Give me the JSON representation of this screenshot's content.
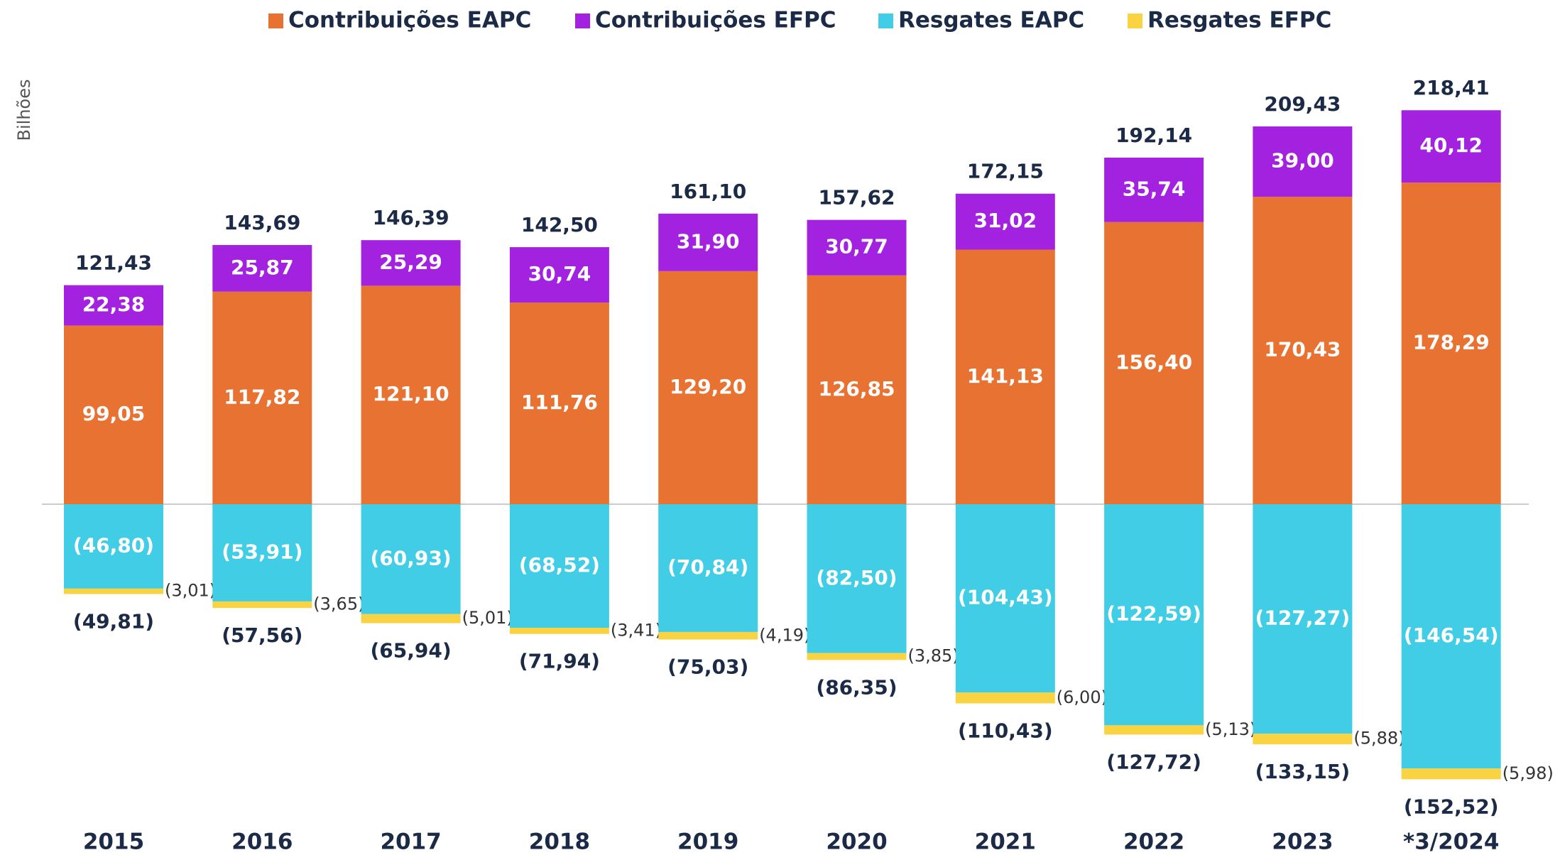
{
  "chart_data": {
    "type": "bar",
    "stacked": true,
    "y_label": "Bilhões",
    "categories": [
      "2015",
      "2016",
      "2017",
      "2018",
      "2019",
      "2020",
      "2021",
      "2022",
      "2023",
      "*3/2024"
    ],
    "series": [
      {
        "name": "Contribuições EAPC",
        "color": "#e87232",
        "values": [
          99.05,
          117.82,
          121.1,
          111.76,
          129.2,
          126.85,
          141.13,
          156.4,
          170.43,
          178.29
        ],
        "value_labels": [
          "99,05",
          "117,82",
          "121,10",
          "111,76",
          "129,20",
          "126,85",
          "141,13",
          "156,40",
          "170,43",
          "178,29"
        ]
      },
      {
        "name": "Contribuições EFPC",
        "color": "#a322e0",
        "values": [
          22.38,
          25.87,
          25.29,
          30.74,
          31.9,
          30.77,
          31.02,
          35.74,
          39.0,
          40.12
        ],
        "value_labels": [
          "22,38",
          "25,87",
          "25,29",
          "30,74",
          "31,90",
          "30,77",
          "31,02",
          "35,74",
          "39,00",
          "40,12"
        ]
      },
      {
        "name": "Resgates EAPC",
        "color": "#41cde6",
        "values": [
          -46.8,
          -53.91,
          -60.93,
          -68.52,
          -70.84,
          -82.5,
          -104.43,
          -122.59,
          -127.27,
          -146.54
        ],
        "value_labels": [
          "(46,80)",
          "(53,91)",
          "(60,93)",
          "(68,52)",
          "(70,84)",
          "(82,50)",
          "(104,43)",
          "(122,59)",
          "(127,27)",
          "(146,54)"
        ]
      },
      {
        "name": "Resgates EFPC",
        "color": "#f9d342",
        "values": [
          -3.01,
          -3.65,
          -5.01,
          -3.41,
          -4.19,
          -3.85,
          -6.0,
          -5.13,
          -5.88,
          -5.98
        ],
        "value_labels": [
          "(3,01)",
          "(3,65)",
          "(5,01)",
          "(3,41)",
          "(4,19)",
          "(3,85)",
          "(6,00)",
          "(5,13)",
          "(5,88)",
          "(5,98)"
        ]
      }
    ],
    "totals": {
      "values": [
        121.43,
        143.69,
        146.39,
        142.5,
        161.1,
        157.62,
        172.15,
        192.14,
        209.43,
        218.41
      ],
      "value_labels": [
        "121,43",
        "143,69",
        "146,39",
        "142,50",
        "161,10",
        "157,62",
        "172,15",
        "192,14",
        "209,43",
        "218,41"
      ]
    },
    "negative_totals": {
      "values": [
        -49.81,
        -57.56,
        -65.94,
        -71.94,
        -75.03,
        -86.35,
        -110.43,
        -127.72,
        -133.15,
        -152.52
      ],
      "value_labels": [
        "(49,81)",
        "(57,56)",
        "(65,94)",
        "(71,94)",
        "(75,03)",
        "(86,35)",
        "(110,43)",
        "(127,72)",
        "(133,15)",
        "(152,52)"
      ]
    },
    "ylim": [
      -170,
      240
    ],
    "legend": "top"
  }
}
